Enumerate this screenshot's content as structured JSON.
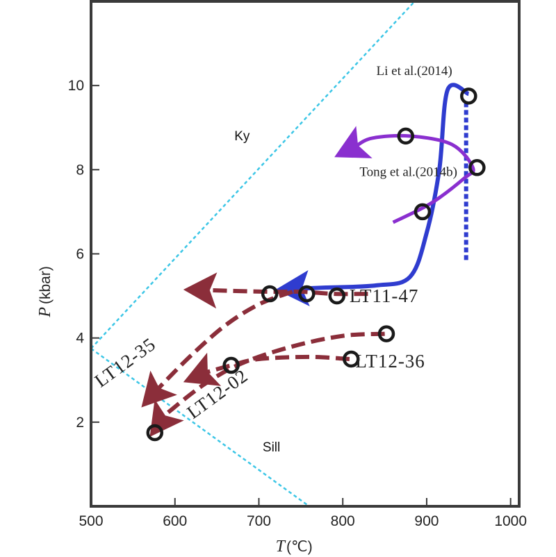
{
  "chart_data": {
    "type": "line",
    "title": "",
    "xlabel": "T",
    "xunit": "(℃)",
    "ylabel": "P",
    "yunit": "(kbar)",
    "xlim": [
      500,
      1000
    ],
    "ylim": [
      0,
      12
    ],
    "xticks": [
      500,
      600,
      700,
      800,
      900,
      1000
    ],
    "yticks": [
      2,
      4,
      6,
      8,
      10
    ],
    "grid": false,
    "field_labels": [
      {
        "id": "ky",
        "text": "Ky",
        "x": 680,
        "y": 8.7
      },
      {
        "id": "sill",
        "text": "Sill",
        "x": 715,
        "y": 1.3
      }
    ],
    "phase_boundaries": [
      {
        "name": "Ky-Sill-upper",
        "x": [
          500,
          895
        ],
        "y": [
          3.75,
          12.2
        ],
        "color": "#3cc6e6"
      },
      {
        "name": "Ky-Sill-lower",
        "x": [
          500,
          760
        ],
        "y": [
          3.75,
          0
        ],
        "color": "#3cc6e6"
      }
    ],
    "series": [
      {
        "name": "Li et al.(2014)",
        "label_x": 840,
        "label_y": 10.25,
        "label_anchor": "start",
        "color": "#2f3ccf",
        "style": "solid",
        "width": 6,
        "arrow": "end",
        "x": [
          950,
          925,
          915,
          900,
          880,
          840,
          780,
          720
        ],
        "y": [
          9.8,
          9.9,
          8.0,
          6.5,
          5.45,
          5.25,
          5.2,
          5.15
        ],
        "points": [
          {
            "x": 950,
            "y": 9.75
          }
        ],
        "extra_line": {
          "x": [
            947,
            947
          ],
          "y": [
            9.6,
            5.8
          ],
          "style": "dotted"
        }
      },
      {
        "name": "Tong et al.(2014b)",
        "label_x": 820,
        "label_y": 7.85,
        "label_anchor": "start",
        "color": "#8a2fcf",
        "style": "solid",
        "width": 5,
        "arrow": "end",
        "x": [
          860,
          905,
          945,
          955,
          930,
          880,
          835,
          790
        ],
        "y": [
          6.75,
          7.2,
          7.8,
          8.05,
          8.6,
          8.8,
          8.75,
          8.3
        ],
        "points": [
          {
            "x": 875,
            "y": 8.8
          },
          {
            "x": 960,
            "y": 8.05
          },
          {
            "x": 895,
            "y": 7.0
          }
        ]
      },
      {
        "name": "LT11-47",
        "label_x": 808,
        "label_y": 4.85,
        "label_anchor": "start",
        "color": "#8b2e3a",
        "style": "dashed",
        "width": 6,
        "arrow": "end",
        "x": [
          830,
          790,
          750,
          710,
          610
        ],
        "y": [
          5.05,
          5.05,
          5.1,
          5.1,
          5.15
        ],
        "points": [
          {
            "x": 713,
            "y": 5.05
          },
          {
            "x": 757,
            "y": 5.05
          },
          {
            "x": 793,
            "y": 5.0
          }
        ]
      },
      {
        "name": "LT12-35",
        "label_x": 0,
        "label_y": 0,
        "label_anchor": "middle",
        "label_rotate": -36,
        "label_pos": {
          "x": 545,
          "y": 3.3
        },
        "color": "#8b2e3a",
        "style": "dashed",
        "width": 6,
        "arrow": "end",
        "x": [
          740,
          700,
          660,
          620,
          585,
          560
        ],
        "y": [
          5.1,
          4.8,
          4.3,
          3.6,
          2.9,
          2.35
        ],
        "points": []
      },
      {
        "name": "LT12-02",
        "label_x": 0,
        "label_y": 0,
        "label_anchor": "middle",
        "label_rotate": -36,
        "label_pos": {
          "x": 655,
          "y": 2.55
        },
        "color": "#8b2e3a",
        "style": "dashed",
        "width": 6,
        "arrow": "end",
        "x": [
          850,
          800,
          740,
          680,
          635,
          590,
          570
        ],
        "y": [
          4.1,
          4.05,
          3.8,
          3.4,
          2.9,
          2.2,
          1.65
        ],
        "points": [
          {
            "x": 852,
            "y": 4.1
          },
          {
            "x": 576,
            "y": 1.75
          }
        ]
      },
      {
        "name": "LT12-36",
        "label_x": 815,
        "label_y": 3.3,
        "label_anchor": "start",
        "color": "#8b2e3a",
        "style": "dashed",
        "width": 6,
        "arrow": "end",
        "x": [
          808,
          760,
          700,
          667,
          640,
          610
        ],
        "y": [
          3.5,
          3.55,
          3.5,
          3.35,
          3.2,
          2.95
        ],
        "points": [
          {
            "x": 667,
            "y": 3.35
          },
          {
            "x": 810,
            "y": 3.5
          }
        ]
      }
    ]
  },
  "colors": {
    "axis": "#3a3a3a",
    "point_stroke": "#1a1a1a"
  }
}
